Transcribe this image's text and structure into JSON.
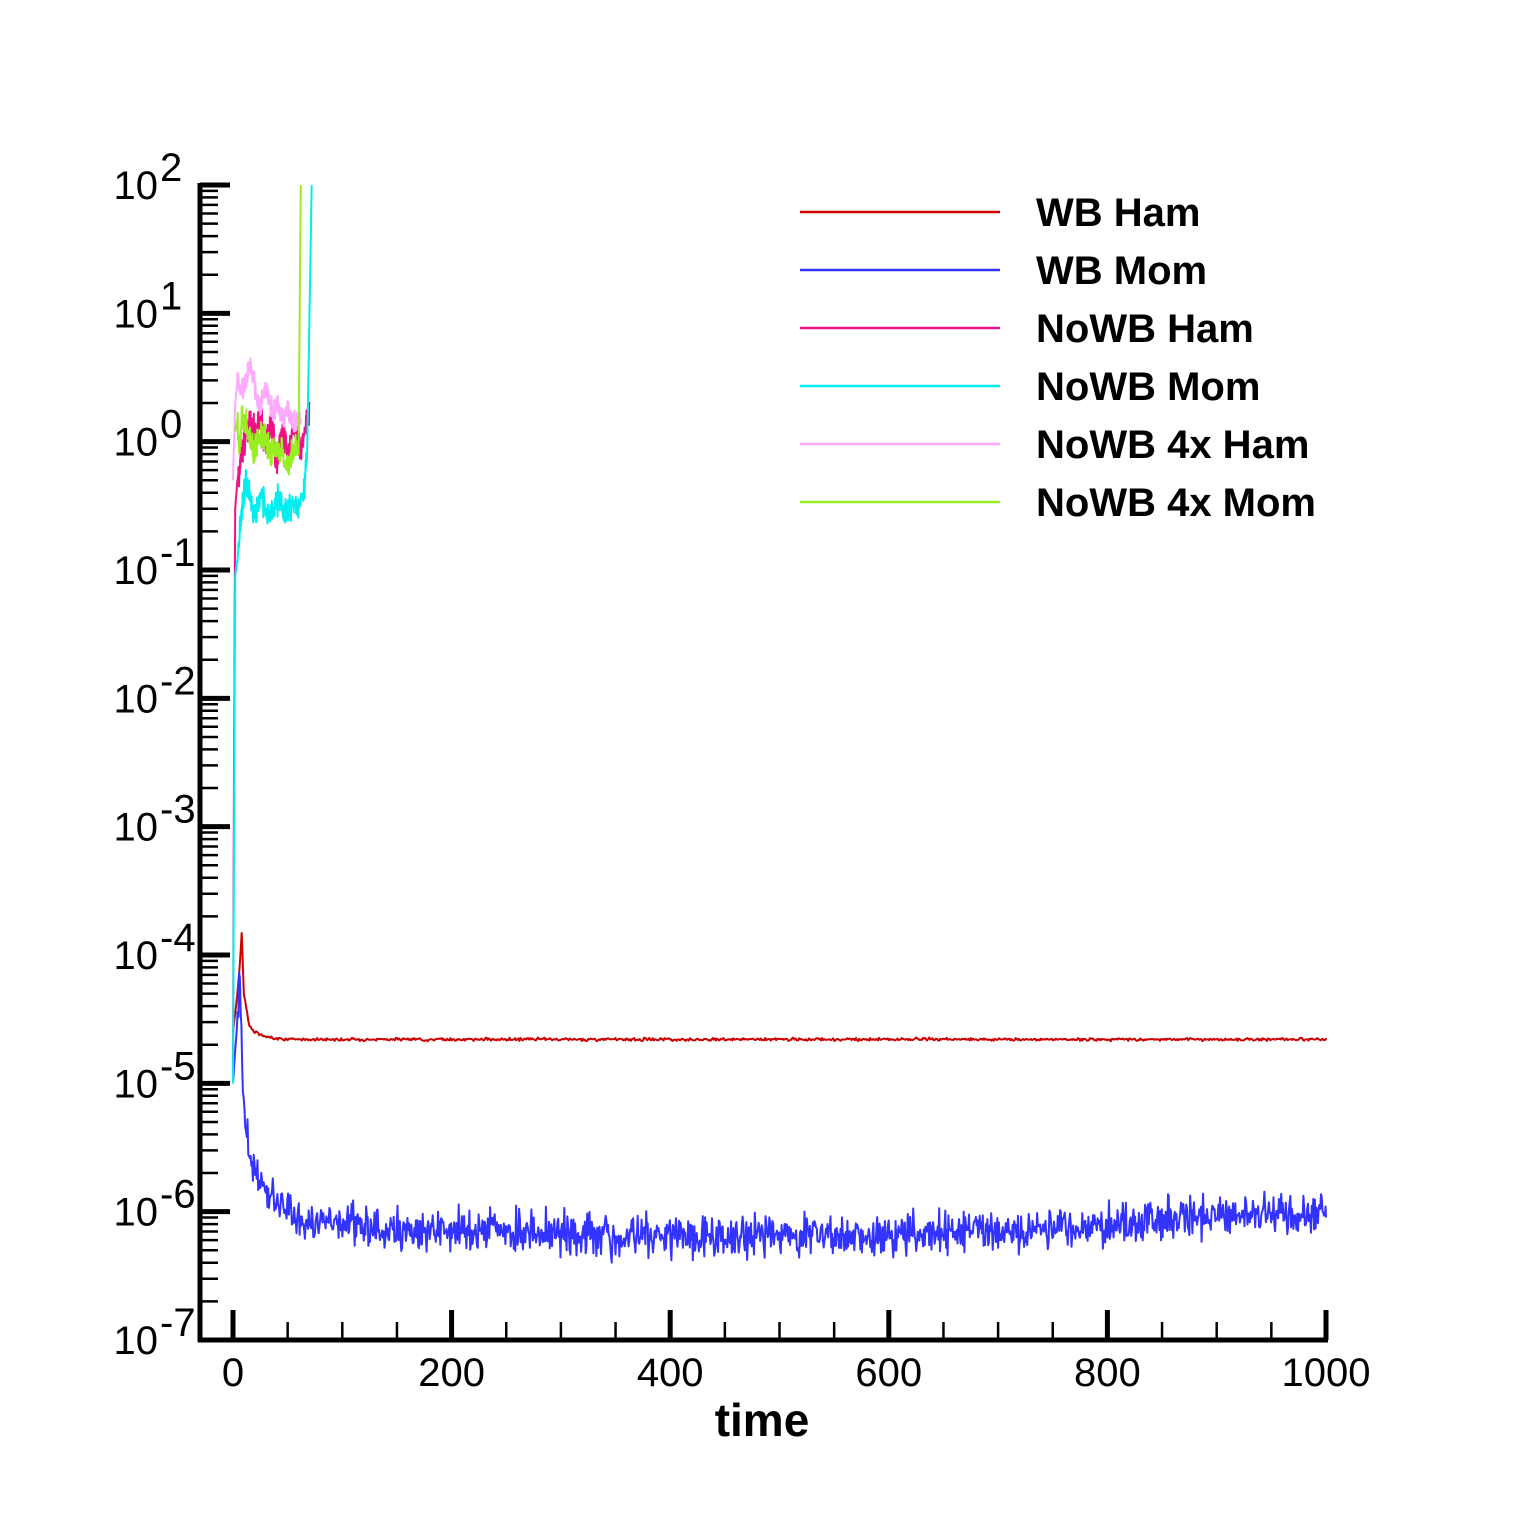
{
  "chart_data": {
    "type": "line",
    "title": "",
    "xlabel": "time",
    "ylabel": "",
    "xlim": [
      -30,
      1000
    ],
    "ylim_exponent": [
      -7,
      2
    ],
    "yscale": "log",
    "grid": false,
    "legend_position": "top-right",
    "x_ticks": [
      "0",
      "200",
      "400",
      "600",
      "800",
      "1000"
    ],
    "y_ticks": [
      {
        "base": "10",
        "exp": "-7"
      },
      {
        "base": "10",
        "exp": "-6"
      },
      {
        "base": "10",
        "exp": "-5"
      },
      {
        "base": "10",
        "exp": "-4"
      },
      {
        "base": "10",
        "exp": "-3"
      },
      {
        "base": "10",
        "exp": "-2"
      },
      {
        "base": "10",
        "exp": "-1"
      },
      {
        "base": "10",
        "exp": "0"
      },
      {
        "base": "10",
        "exp": "1"
      },
      {
        "base": "10",
        "exp": "2"
      }
    ],
    "series": [
      {
        "name": "WB Ham",
        "color": "#cc0000",
        "x": [
          0,
          2,
          4,
          6,
          8,
          10,
          15,
          20,
          30,
          50,
          100,
          200,
          300,
          400,
          500,
          600,
          700,
          800,
          900,
          1000
        ],
        "y": [
          2.5e-05,
          3.5e-05,
          5e-05,
          8e-05,
          0.00015,
          5e-05,
          2.8e-05,
          2.5e-05,
          2.3e-05,
          2.2e-05,
          2.2e-05,
          2.2e-05,
          2.2e-05,
          2.2e-05,
          2.2e-05,
          2.2e-05,
          2.2e-05,
          2.2e-05,
          2.2e-05,
          2.2e-05
        ]
      },
      {
        "name": "WB Mom",
        "color": "#3333ff",
        "x": [
          0,
          2,
          4,
          6,
          8,
          10,
          15,
          20,
          30,
          40,
          50,
          60,
          80,
          100,
          150,
          200,
          250,
          300,
          350,
          400,
          450,
          500,
          550,
          600,
          650,
          700,
          750,
          800,
          850,
          900,
          950,
          1000
        ],
        "y": [
          1e-05,
          1.8e-05,
          3e-05,
          9e-05,
          2e-05,
          6e-06,
          3e-06,
          2e-06,
          1.5e-06,
          1.2e-06,
          1e-06,
          9e-07,
          8e-07,
          8e-07,
          7e-07,
          7e-07,
          7e-07,
          7e-07,
          6.5e-07,
          6.5e-07,
          6.5e-07,
          6.5e-07,
          6.5e-07,
          6.5e-07,
          7e-07,
          7e-07,
          7.5e-07,
          8e-07,
          8.5e-07,
          9e-07,
          9e-07,
          9e-07
        ]
      },
      {
        "name": "NoWB Ham",
        "color": "#ee1188",
        "x": [
          0,
          1,
          2,
          4,
          8,
          12,
          16,
          20,
          25,
          30,
          35,
          40,
          45,
          50,
          55,
          60,
          65,
          68,
          70
        ],
        "y": [
          1e-05,
          0.005,
          0.3,
          0.5,
          0.8,
          1.2,
          1.5,
          1.0,
          1.8,
          0.9,
          1.4,
          0.7,
          1.2,
          0.8,
          1.3,
          0.9,
          1.1,
          1.5,
          2.0
        ]
      },
      {
        "name": "NoWB Mom",
        "color": "#00eeee",
        "x": [
          0,
          1,
          2,
          4,
          8,
          12,
          16,
          20,
          25,
          30,
          35,
          40,
          45,
          50,
          55,
          60,
          65,
          68,
          70,
          72
        ],
        "y": [
          1e-05,
          0.001,
          0.09,
          0.12,
          0.3,
          0.5,
          0.35,
          0.25,
          0.4,
          0.3,
          0.25,
          0.35,
          0.3,
          0.3,
          0.35,
          0.3,
          0.4,
          1.0,
          10,
          100
        ]
      },
      {
        "name": "NoWB 4x Ham",
        "color": "#ffaaff",
        "x": [
          0,
          2,
          4,
          8,
          12,
          16,
          20,
          25,
          30,
          35,
          40,
          45,
          50,
          55,
          60,
          62
        ],
        "y": [
          0.5,
          2.0,
          3.0,
          2.5,
          3.0,
          4.0,
          2.5,
          2.0,
          2.5,
          1.8,
          2.0,
          1.5,
          1.8,
          1.4,
          1.5,
          1.5
        ]
      },
      {
        "name": "NoWB 4x Mom",
        "color": "#99ee22",
        "x": [
          2,
          4,
          6,
          8,
          12,
          16,
          20,
          25,
          30,
          35,
          40,
          45,
          50,
          55,
          58,
          60,
          61,
          62
        ],
        "y": [
          1.2,
          1.5,
          0.8,
          1.6,
          1.4,
          1.0,
          0.9,
          1.1,
          1.0,
          0.8,
          0.9,
          0.8,
          0.7,
          0.8,
          0.9,
          0.8,
          10,
          100
        ]
      }
    ]
  }
}
